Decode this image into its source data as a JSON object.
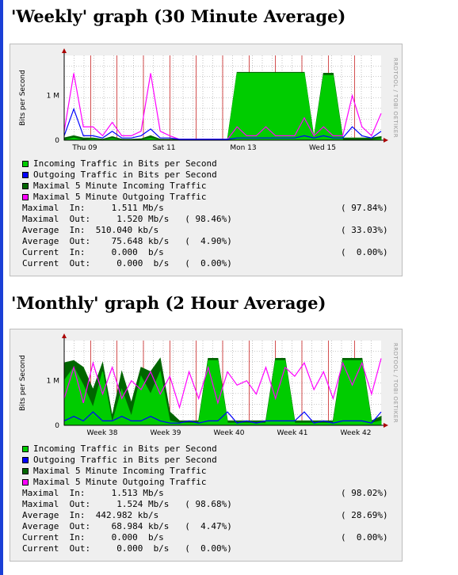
{
  "colors": {
    "incoming": "#00cc00",
    "outgoing": "#0000ff",
    "max_incoming": "#006600",
    "max_outgoing": "#ff00ff",
    "grid_major": "#c00000",
    "grid_minor": "#999999",
    "plot_bg": "#ffffff",
    "panel_bg": "#efefef"
  },
  "graphs": [
    {
      "title": "'Weekly' graph (30 Minute Average)",
      "ylabel": "Bits per Second",
      "side_label": "RRDTOOL / TOBI OETIKER",
      "yticks": [
        "1 M",
        "0"
      ],
      "xticks": [
        "Thu 09",
        "Sat 11",
        "Mon 13",
        "Wed 15"
      ],
      "legend": [
        {
          "label": "Incoming Traffic in Bits per Second",
          "color_key": "incoming"
        },
        {
          "label": "Outgoing Traffic in Bits per Second",
          "color_key": "outgoing"
        },
        {
          "label": "Maximal 5 Minute Incoming Traffic",
          "color_key": "max_incoming"
        },
        {
          "label": "Maximal 5 Minute Outgoing Traffic",
          "color_key": "max_outgoing"
        }
      ],
      "stats": [
        {
          "text": "Maximal  In:     1.511 Mb/s",
          "pct": "( 97.84%)"
        },
        {
          "text": "Maximal  Out:     1.520 Mb/s   ( 98.46%)",
          "pct": ""
        },
        {
          "text": "Average  In:  510.040 kb/s",
          "pct": "( 33.03%)"
        },
        {
          "text": "Average  Out:    75.648 kb/s   (  4.90%)",
          "pct": ""
        },
        {
          "text": "Current  In:     0.000  b/s",
          "pct": "(  0.00%)"
        },
        {
          "text": "Current  Out:     0.000  b/s   (  0.00%)",
          "pct": ""
        }
      ],
      "chart_data": {
        "type": "area",
        "ylim": [
          0,
          1.9
        ],
        "ylabel": "Bits per Second",
        "x": [
          0,
          3,
          6,
          9,
          12,
          15,
          18,
          21,
          24,
          27,
          30,
          33,
          36,
          39,
          42,
          45,
          48,
          51,
          54,
          57,
          60,
          63,
          66,
          69,
          72,
          75,
          78,
          81,
          84,
          87,
          90,
          93,
          96,
          99
        ],
        "series": [
          {
            "name": "Incoming Traffic in Bits per Second",
            "color_key": "incoming",
            "values": [
              0,
              0.05,
              0,
              0.02,
              0,
              0.03,
              0,
              0,
              0,
              0.04,
              0,
              0,
              0,
              0,
              0,
              0,
              0,
              0,
              1.5,
              1.5,
              1.5,
              1.5,
              1.5,
              1.5,
              1.5,
              1.5,
              0.02,
              1.45,
              1.45,
              0,
              0,
              0,
              0,
              0.03
            ]
          },
          {
            "name": "Outgoing Traffic in Bits per Second",
            "color_key": "outgoing",
            "values": [
              0.1,
              0.7,
              0.1,
              0.1,
              0.05,
              0.2,
              0.05,
              0.05,
              0.1,
              0.25,
              0.05,
              0.05,
              0.02,
              0.02,
              0.02,
              0.02,
              0.02,
              0.02,
              0.05,
              0.05,
              0.05,
              0.05,
              0.05,
              0.05,
              0.05,
              0.1,
              0.05,
              0.1,
              0.05,
              0.05,
              0.3,
              0.1,
              0.05,
              0.2
            ]
          },
          {
            "name": "Maximal 5 Minute Incoming Traffic",
            "color_key": "max_incoming",
            "values": [
              0.05,
              0.1,
              0.05,
              0.05,
              0.02,
              0.08,
              0.02,
              0.02,
              0.03,
              0.1,
              0.02,
              0.02,
              0.02,
              0.02,
              0.02,
              0.02,
              0.02,
              0.02,
              1.52,
              1.52,
              1.52,
              1.52,
              1.52,
              1.52,
              1.52,
              1.52,
              0.05,
              1.5,
              1.5,
              0.05,
              0.05,
              0.05,
              0.05,
              0.08
            ]
          },
          {
            "name": "Maximal 5 Minute Outgoing Traffic",
            "color_key": "max_outgoing",
            "values": [
              0.2,
              1.5,
              0.3,
              0.3,
              0.1,
              0.4,
              0.1,
              0.1,
              0.2,
              1.5,
              0.2,
              0.1,
              0.02,
              0.02,
              0.02,
              0.02,
              0.02,
              0.02,
              0.3,
              0.1,
              0.1,
              0.3,
              0.1,
              0.1,
              0.1,
              0.5,
              0.1,
              0.3,
              0.1,
              0.1,
              1.0,
              0.3,
              0.1,
              0.6
            ]
          }
        ]
      }
    },
    {
      "title": "'Monthly' graph (2 Hour Average)",
      "ylabel": "Bits per Second",
      "side_label": "RRDTOOL / TOBI OETIKER",
      "yticks": [
        "1 M",
        "0"
      ],
      "xticks": [
        "Week 38",
        "Week 39",
        "Week 40",
        "Week 41",
        "Week 42"
      ],
      "legend": [
        {
          "label": "Incoming Traffic in Bits per Second",
          "color_key": "incoming"
        },
        {
          "label": "Outgoing Traffic in Bits per Second",
          "color_key": "outgoing"
        },
        {
          "label": "Maximal 5 Minute Incoming Traffic",
          "color_key": "max_incoming"
        },
        {
          "label": "Maximal 5 Minute Outgoing Traffic",
          "color_key": "max_outgoing"
        }
      ],
      "stats": [
        {
          "text": "Maximal  In:     1.513 Mb/s",
          "pct": "( 98.02%)"
        },
        {
          "text": "Maximal  Out:     1.524 Mb/s   ( 98.68%)",
          "pct": ""
        },
        {
          "text": "Average  In:  442.982 kb/s",
          "pct": "( 28.69%)"
        },
        {
          "text": "Average  Out:    68.984 kb/s   (  4.47%)",
          "pct": ""
        },
        {
          "text": "Current  In:     0.000  b/s",
          "pct": "(  0.00%)"
        },
        {
          "text": "Current  Out:     0.000  b/s   (  0.00%)",
          "pct": ""
        }
      ],
      "chart_data": {
        "type": "area",
        "ylim": [
          0,
          1.9
        ],
        "ylabel": "Bits per Second",
        "x": [
          0,
          3,
          6,
          9,
          12,
          15,
          18,
          21,
          24,
          27,
          30,
          33,
          36,
          39,
          42,
          45,
          48,
          51,
          54,
          57,
          60,
          63,
          66,
          69,
          72,
          75,
          78,
          81,
          84,
          87,
          90,
          93,
          96,
          99
        ],
        "series": [
          {
            "name": "Incoming Traffic in Bits per Second",
            "color_key": "incoming",
            "values": [
              1.0,
              1.3,
              0.9,
              0.4,
              1.2,
              0.05,
              0.8,
              0.2,
              1.1,
              0.7,
              1.2,
              0.1,
              0.05,
              0.05,
              0.05,
              1.45,
              1.45,
              0.05,
              0.05,
              0.05,
              0.05,
              0.05,
              1.45,
              1.45,
              0.05,
              0.05,
              0.05,
              0.05,
              0.05,
              1.45,
              1.45,
              1.45,
              0.05,
              0.1
            ]
          },
          {
            "name": "Outgoing Traffic in Bits per Second",
            "color_key": "outgoing",
            "values": [
              0.1,
              0.2,
              0.1,
              0.3,
              0.1,
              0.1,
              0.2,
              0.1,
              0.1,
              0.2,
              0.1,
              0.05,
              0.05,
              0.1,
              0.05,
              0.1,
              0.1,
              0.3,
              0.05,
              0.1,
              0.05,
              0.1,
              0.1,
              0.1,
              0.1,
              0.3,
              0.05,
              0.1,
              0.05,
              0.1,
              0.1,
              0.1,
              0.05,
              0.3
            ]
          },
          {
            "name": "Maximal 5 Minute Incoming Traffic",
            "color_key": "max_incoming",
            "values": [
              1.4,
              1.45,
              1.3,
              0.8,
              1.4,
              0.2,
              1.2,
              0.5,
              1.3,
              1.2,
              1.5,
              0.3,
              0.1,
              0.1,
              0.1,
              1.5,
              1.5,
              0.1,
              0.1,
              0.1,
              0.1,
              0.1,
              1.5,
              1.5,
              0.1,
              0.1,
              0.1,
              0.1,
              0.1,
              1.5,
              1.5,
              1.5,
              0.1,
              0.2
            ]
          },
          {
            "name": "Maximal 5 Minute Outgoing Traffic",
            "color_key": "max_outgoing",
            "values": [
              0.6,
              1.3,
              0.5,
              1.4,
              0.7,
              1.3,
              0.6,
              1.0,
              0.8,
              1.2,
              0.7,
              1.1,
              0.4,
              1.2,
              0.6,
              1.3,
              0.5,
              1.2,
              0.9,
              1.0,
              0.7,
              1.3,
              0.6,
              1.3,
              1.1,
              1.4,
              0.8,
              1.2,
              0.6,
              1.4,
              0.9,
              1.4,
              0.7,
              1.5
            ]
          }
        ]
      }
    }
  ]
}
